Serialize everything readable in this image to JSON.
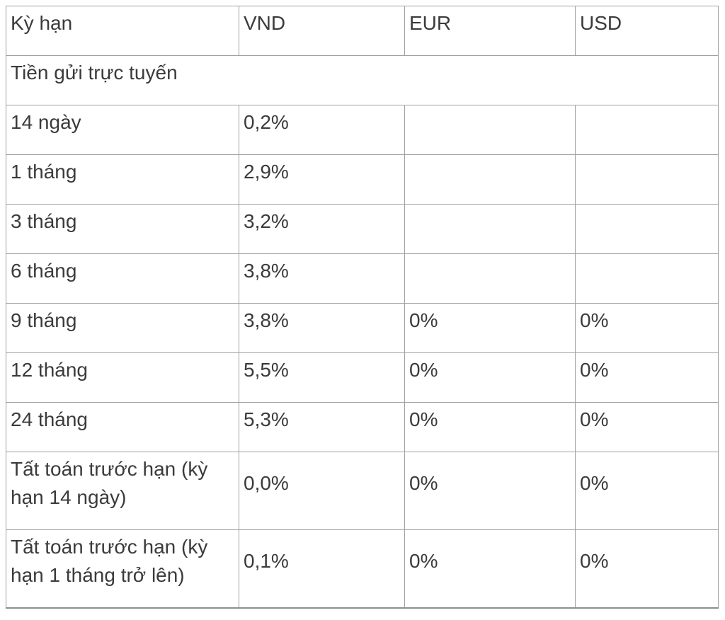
{
  "table": {
    "columns": {
      "term": "Kỳ hạn",
      "vnd": "VND",
      "eur": "EUR",
      "usd": "USD"
    },
    "section_label": "Tiền gửi trực tuyến",
    "rows": [
      {
        "term": "14 ngày",
        "vnd": "0,2%",
        "eur": "",
        "usd": ""
      },
      {
        "term": "1 tháng",
        "vnd": "2,9%",
        "eur": "",
        "usd": ""
      },
      {
        "term": "3 tháng",
        "vnd": "3,2%",
        "eur": "",
        "usd": ""
      },
      {
        "term": "6 tháng",
        "vnd": "3,8%",
        "eur": "",
        "usd": ""
      },
      {
        "term": "9 tháng",
        "vnd": "3,8%",
        "eur": "0%",
        "usd": "0%"
      },
      {
        "term": "12 tháng",
        "vnd": "5,5%",
        "eur": "0%",
        "usd": "0%"
      },
      {
        "term": "24 tháng",
        "vnd": "5,3%",
        "eur": "0%",
        "usd": "0%"
      },
      {
        "term": "Tất toán trước hạn (kỳ hạn 14 ngày)",
        "vnd": "0,0%",
        "eur": "0%",
        "usd": "0%"
      },
      {
        "term": "Tất toán trước hạn (kỳ hạn 1 tháng trở lên)",
        "vnd": "0,1%",
        "eur": "0%",
        "usd": "0%"
      }
    ],
    "colors": {
      "text": "#3b3b3b",
      "border": "#a0a0a0",
      "background": "#ffffff"
    }
  }
}
